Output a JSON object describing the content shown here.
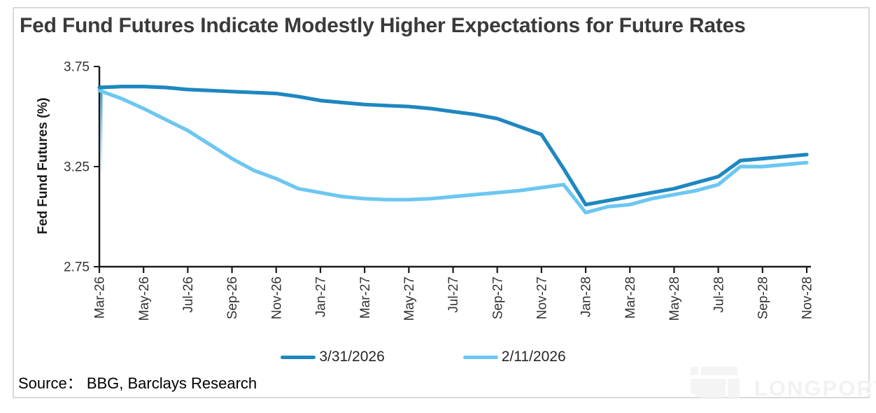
{
  "card": {
    "border_color": "#d9d9d9",
    "background": "#ffffff"
  },
  "source_line": {
    "text": "Source：  BBG, Barclays Research"
  },
  "watermark": {
    "text": "LONGPORT",
    "color": "#f2f2f2",
    "logo_icon": "longport-logo"
  },
  "chart_data": {
    "type": "line",
    "title": "Fed Fund Futures Indicate Modestly Higher Expectations for Future Rates",
    "xlabel": "",
    "ylabel": "Fed Fund Futures (%)",
    "ylim": [
      2.75,
      3.75
    ],
    "yticks": [
      3.75,
      3.25,
      2.75
    ],
    "grid": false,
    "legend_position": "bottom",
    "categories": [
      "Mar-26",
      "May-26",
      "Jul-26",
      "Sep-26",
      "Nov-26",
      "Jan-27",
      "Mar-27",
      "May-27",
      "Jul-27",
      "Sep-27",
      "Nov-27",
      "Jan-28",
      "Mar-28",
      "May-28",
      "Jul-28",
      "Sep-28",
      "Nov-28"
    ],
    "months_per_category": 2,
    "n_points": 33,
    "axis_color": "#1a1a1a",
    "series": [
      {
        "name": "3/31/2026",
        "color": "#1e87c0",
        "values": [
          3.645,
          3.65,
          3.65,
          3.645,
          3.635,
          3.63,
          3.625,
          3.62,
          3.615,
          3.6,
          3.58,
          3.57,
          3.56,
          3.555,
          3.55,
          3.54,
          3.525,
          3.51,
          3.49,
          3.45,
          3.41,
          3.24,
          3.06,
          3.08,
          3.1,
          3.12,
          3.14,
          3.17,
          3.2,
          3.28,
          3.29,
          3.3,
          3.31
        ]
      },
      {
        "name": "2/11/2026",
        "color": "#6cc7f1",
        "values": [
          3.63,
          3.59,
          3.54,
          3.485,
          3.43,
          3.36,
          3.29,
          3.23,
          3.19,
          3.14,
          3.12,
          3.1,
          3.09,
          3.085,
          3.085,
          3.09,
          3.1,
          3.11,
          3.12,
          3.13,
          3.145,
          3.16,
          3.02,
          3.05,
          3.06,
          3.09,
          3.11,
          3.13,
          3.16,
          3.25,
          3.25,
          3.26,
          3.27
        ]
      }
    ]
  }
}
